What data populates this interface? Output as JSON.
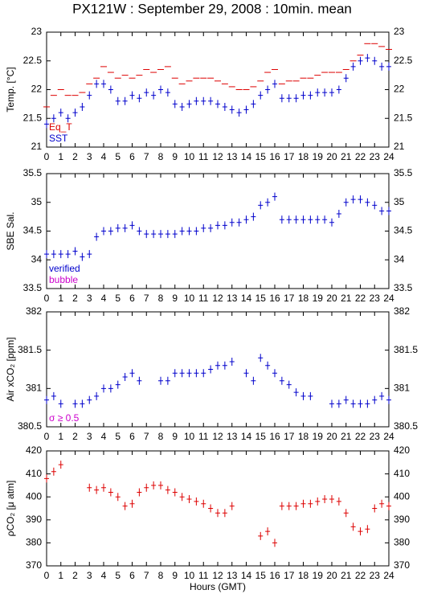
{
  "chart_data": [
    {
      "type": "scatter",
      "title": "PX121W : September 29, 2008 : 10min. mean",
      "ylabel": "Temp. [°C]",
      "x": [
        0,
        0.5,
        1,
        1.5,
        2,
        2.5,
        3,
        3.5,
        4,
        4.5,
        5,
        5.5,
        6,
        6.5,
        7,
        7.5,
        8,
        8.5,
        9,
        9.5,
        10,
        10.5,
        11,
        11.5,
        12,
        12.5,
        13,
        13.5,
        14,
        14.5,
        15,
        15.5,
        16,
        16.5,
        17,
        17.5,
        18,
        18.5,
        19,
        19.5,
        20,
        20.5,
        21,
        21.5,
        22,
        22.5,
        23,
        23.5,
        24
      ],
      "xlim": [
        0,
        24
      ],
      "xticks": [
        0,
        1,
        2,
        3,
        4,
        5,
        6,
        7,
        8,
        9,
        10,
        11,
        12,
        13,
        14,
        15,
        16,
        17,
        18,
        19,
        20,
        21,
        22,
        23,
        24
      ],
      "ylim": [
        21,
        23
      ],
      "yticks": [
        21,
        21.5,
        22,
        22.5,
        23
      ],
      "legend": "lower left",
      "series": [
        {
          "name": "Eq_T",
          "color": "#dd0000",
          "marker": "dash",
          "values": [
            21.7,
            21.9,
            22.0,
            21.9,
            21.9,
            21.95,
            22.1,
            22.2,
            22.4,
            22.3,
            22.2,
            22.25,
            22.2,
            22.25,
            22.35,
            22.3,
            22.35,
            22.4,
            22.2,
            22.1,
            22.15,
            22.2,
            22.2,
            22.2,
            22.15,
            22.1,
            22.05,
            22.0,
            22.0,
            22.05,
            22.15,
            22.3,
            22.35,
            22.1,
            22.15,
            22.15,
            22.2,
            22.2,
            22.25,
            22.3,
            22.3,
            22.3,
            22.35,
            22.5,
            22.6,
            22.8,
            22.8,
            22.75,
            22.7
          ]
        },
        {
          "name": "SST",
          "color": "#0000cc",
          "marker": "cross",
          "values": [
            21.4,
            21.5,
            21.6,
            21.5,
            21.6,
            21.7,
            21.9,
            22.1,
            22.1,
            22.0,
            21.8,
            21.8,
            21.9,
            21.85,
            21.95,
            21.9,
            22.0,
            21.95,
            21.75,
            21.7,
            21.75,
            21.8,
            21.8,
            21.8,
            21.75,
            21.7,
            21.65,
            21.6,
            21.65,
            21.75,
            21.9,
            22.0,
            22.1,
            21.85,
            21.85,
            21.85,
            21.9,
            21.9,
            21.95,
            21.95,
            21.95,
            22.0,
            22.2,
            22.4,
            22.5,
            22.55,
            22.5,
            22.4,
            22.4
          ]
        }
      ]
    },
    {
      "type": "scatter",
      "ylabel": "SBE Sal.",
      "x": [
        0,
        0.5,
        1,
        1.5,
        2,
        2.5,
        3,
        3.5,
        4,
        4.5,
        5,
        5.5,
        6,
        6.5,
        7,
        7.5,
        8,
        8.5,
        9,
        9.5,
        10,
        10.5,
        11,
        11.5,
        12,
        12.5,
        13,
        13.5,
        14,
        14.5,
        15,
        15.5,
        16,
        16.5,
        17,
        17.5,
        18,
        18.5,
        19,
        19.5,
        20,
        20.5,
        21,
        21.5,
        22,
        22.5,
        23,
        23.5,
        24
      ],
      "xlim": [
        0,
        24
      ],
      "xticks": [
        0,
        1,
        2,
        3,
        4,
        5,
        6,
        7,
        8,
        9,
        10,
        11,
        12,
        13,
        14,
        15,
        16,
        17,
        18,
        19,
        20,
        21,
        22,
        23,
        24
      ],
      "ylim": [
        33.5,
        35.5
      ],
      "yticks": [
        33.5,
        34,
        34.5,
        35,
        35.5
      ],
      "legend": "lower left",
      "series": [
        {
          "name": "verified",
          "color": "#0000cc",
          "marker": "cross",
          "values": [
            34.1,
            34.1,
            34.1,
            34.1,
            34.15,
            34.05,
            34.1,
            34.4,
            34.5,
            34.5,
            34.55,
            34.55,
            34.6,
            34.5,
            34.45,
            34.45,
            34.45,
            34.45,
            34.45,
            34.5,
            34.5,
            34.5,
            34.55,
            34.55,
            34.6,
            34.6,
            34.65,
            34.65,
            34.7,
            34.75,
            34.95,
            35.0,
            35.1,
            34.7,
            34.7,
            34.7,
            34.7,
            34.7,
            34.7,
            34.7,
            34.65,
            34.8,
            35.0,
            35.05,
            35.05,
            35.0,
            34.95,
            34.85,
            34.85
          ]
        }
      ],
      "annotations": [
        {
          "text": "bubble",
          "color": "#cc00cc"
        }
      ]
    },
    {
      "type": "scatter",
      "ylabel": "Air xCO₂ [ppm]",
      "x": [
        0,
        0.5,
        1,
        1.5,
        2,
        2.5,
        3,
        3.5,
        4,
        4.5,
        5,
        5.5,
        6,
        6.5,
        7,
        7.5,
        8,
        8.5,
        9,
        9.5,
        10,
        10.5,
        11,
        11.5,
        12,
        12.5,
        13,
        13.5,
        14,
        14.5,
        15,
        15.5,
        16,
        16.5,
        17,
        17.5,
        18,
        18.5,
        19,
        19.5,
        20,
        20.5,
        21,
        21.5,
        22,
        22.5,
        23,
        23.5,
        24
      ],
      "xlim": [
        0,
        24
      ],
      "xticks": [
        0,
        1,
        2,
        3,
        4,
        5,
        6,
        7,
        8,
        9,
        10,
        11,
        12,
        13,
        14,
        15,
        16,
        17,
        18,
        19,
        20,
        21,
        22,
        23,
        24
      ],
      "ylim": [
        380.5,
        382
      ],
      "yticks": [
        380.5,
        381,
        381.5,
        382
      ],
      "legend": "lower left",
      "series": [
        {
          "color": "#0000cc",
          "marker": "cross",
          "values": [
            380.85,
            380.9,
            380.8,
            null,
            380.8,
            380.8,
            380.85,
            380.9,
            381.0,
            381.0,
            381.05,
            381.15,
            381.2,
            381.1,
            null,
            null,
            381.1,
            381.1,
            381.2,
            381.2,
            381.2,
            381.2,
            381.2,
            381.25,
            381.3,
            381.3,
            381.35,
            null,
            381.2,
            381.1,
            381.4,
            381.3,
            381.2,
            381.1,
            381.05,
            380.95,
            380.9,
            380.9,
            null,
            null,
            380.8,
            380.8,
            380.85,
            380.8,
            380.8,
            380.8,
            380.85,
            380.9,
            380.85
          ]
        }
      ],
      "annotations": [
        {
          "text": "σ ≥ 0.5",
          "color": "#cc00cc"
        }
      ]
    },
    {
      "type": "scatter",
      "ylabel": "ρCO₂ [μ atm]",
      "xlabel": "Hours (GMT)",
      "x": [
        0,
        0.5,
        1,
        1.5,
        2,
        2.5,
        3,
        3.5,
        4,
        4.5,
        5,
        5.5,
        6,
        6.5,
        7,
        7.5,
        8,
        8.5,
        9,
        9.5,
        10,
        10.5,
        11,
        11.5,
        12,
        12.5,
        13,
        13.5,
        14,
        14.5,
        15,
        15.5,
        16,
        16.5,
        17,
        17.5,
        18,
        18.5,
        19,
        19.5,
        20,
        20.5,
        21,
        21.5,
        22,
        22.5,
        23,
        23.5,
        24
      ],
      "xlim": [
        0,
        24
      ],
      "xticks": [
        0,
        1,
        2,
        3,
        4,
        5,
        6,
        7,
        8,
        9,
        10,
        11,
        12,
        13,
        14,
        15,
        16,
        17,
        18,
        19,
        20,
        21,
        22,
        23,
        24
      ],
      "ylim": [
        370,
        420
      ],
      "yticks": [
        370,
        380,
        390,
        400,
        410,
        420
      ],
      "series": [
        {
          "color": "#dd0000",
          "marker": "cross",
          "values": [
            408,
            411,
            414,
            null,
            null,
            null,
            404,
            403,
            404,
            402,
            400,
            396,
            397,
            402,
            404,
            405,
            405,
            403,
            402,
            400,
            399,
            398,
            397,
            395,
            393,
            393,
            396,
            null,
            null,
            null,
            383,
            385,
            380,
            396,
            396,
            396,
            397,
            397,
            398,
            399,
            399,
            398,
            393,
            387,
            385,
            386,
            395,
            397,
            396
          ]
        }
      ]
    }
  ]
}
